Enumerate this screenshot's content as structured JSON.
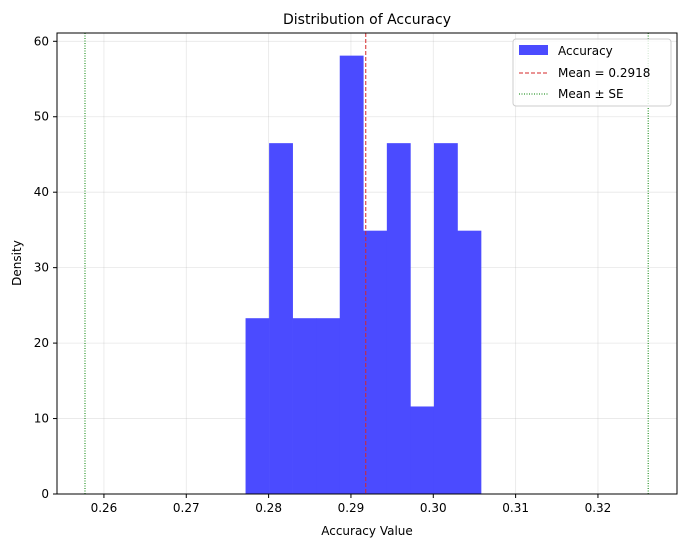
{
  "chart_data": {
    "type": "histogram",
    "title": "Distribution of Accuracy",
    "xlabel": "Accuracy Value",
    "ylabel": "Density",
    "xlim": [
      0.2543,
      0.3296
    ],
    "ylim": [
      0,
      61.1
    ],
    "xticks": [
      "0.26",
      "0.27",
      "0.28",
      "0.29",
      "0.30",
      "0.31",
      "0.32"
    ],
    "xtick_values": [
      0.26,
      0.27,
      0.28,
      0.29,
      0.3,
      0.31,
      0.32
    ],
    "yticks": [
      "0",
      "10",
      "20",
      "30",
      "40",
      "50",
      "60"
    ],
    "ytick_values": [
      0,
      10,
      20,
      30,
      40,
      50,
      60
    ],
    "grid": true,
    "bin_edges": [
      0.2772,
      0.28006,
      0.28292,
      0.28578,
      0.28864,
      0.2915,
      0.29436,
      0.29722,
      0.30008,
      0.30294,
      0.3058
    ],
    "densities": [
      23.3,
      46.5,
      23.3,
      23.3,
      58.1,
      34.9,
      46.5,
      11.6,
      46.5,
      34.9
    ],
    "bar_color": "#4b4bff",
    "mean": 0.2918,
    "mean_minus_se": 0.2577,
    "mean_plus_se": 0.3261,
    "mean_color": "#d62728",
    "se_color": "#008000",
    "legend": {
      "placement": "top-right",
      "entries": [
        "Accuracy",
        "Mean = 0.2918",
        "Mean ± SE"
      ]
    }
  }
}
